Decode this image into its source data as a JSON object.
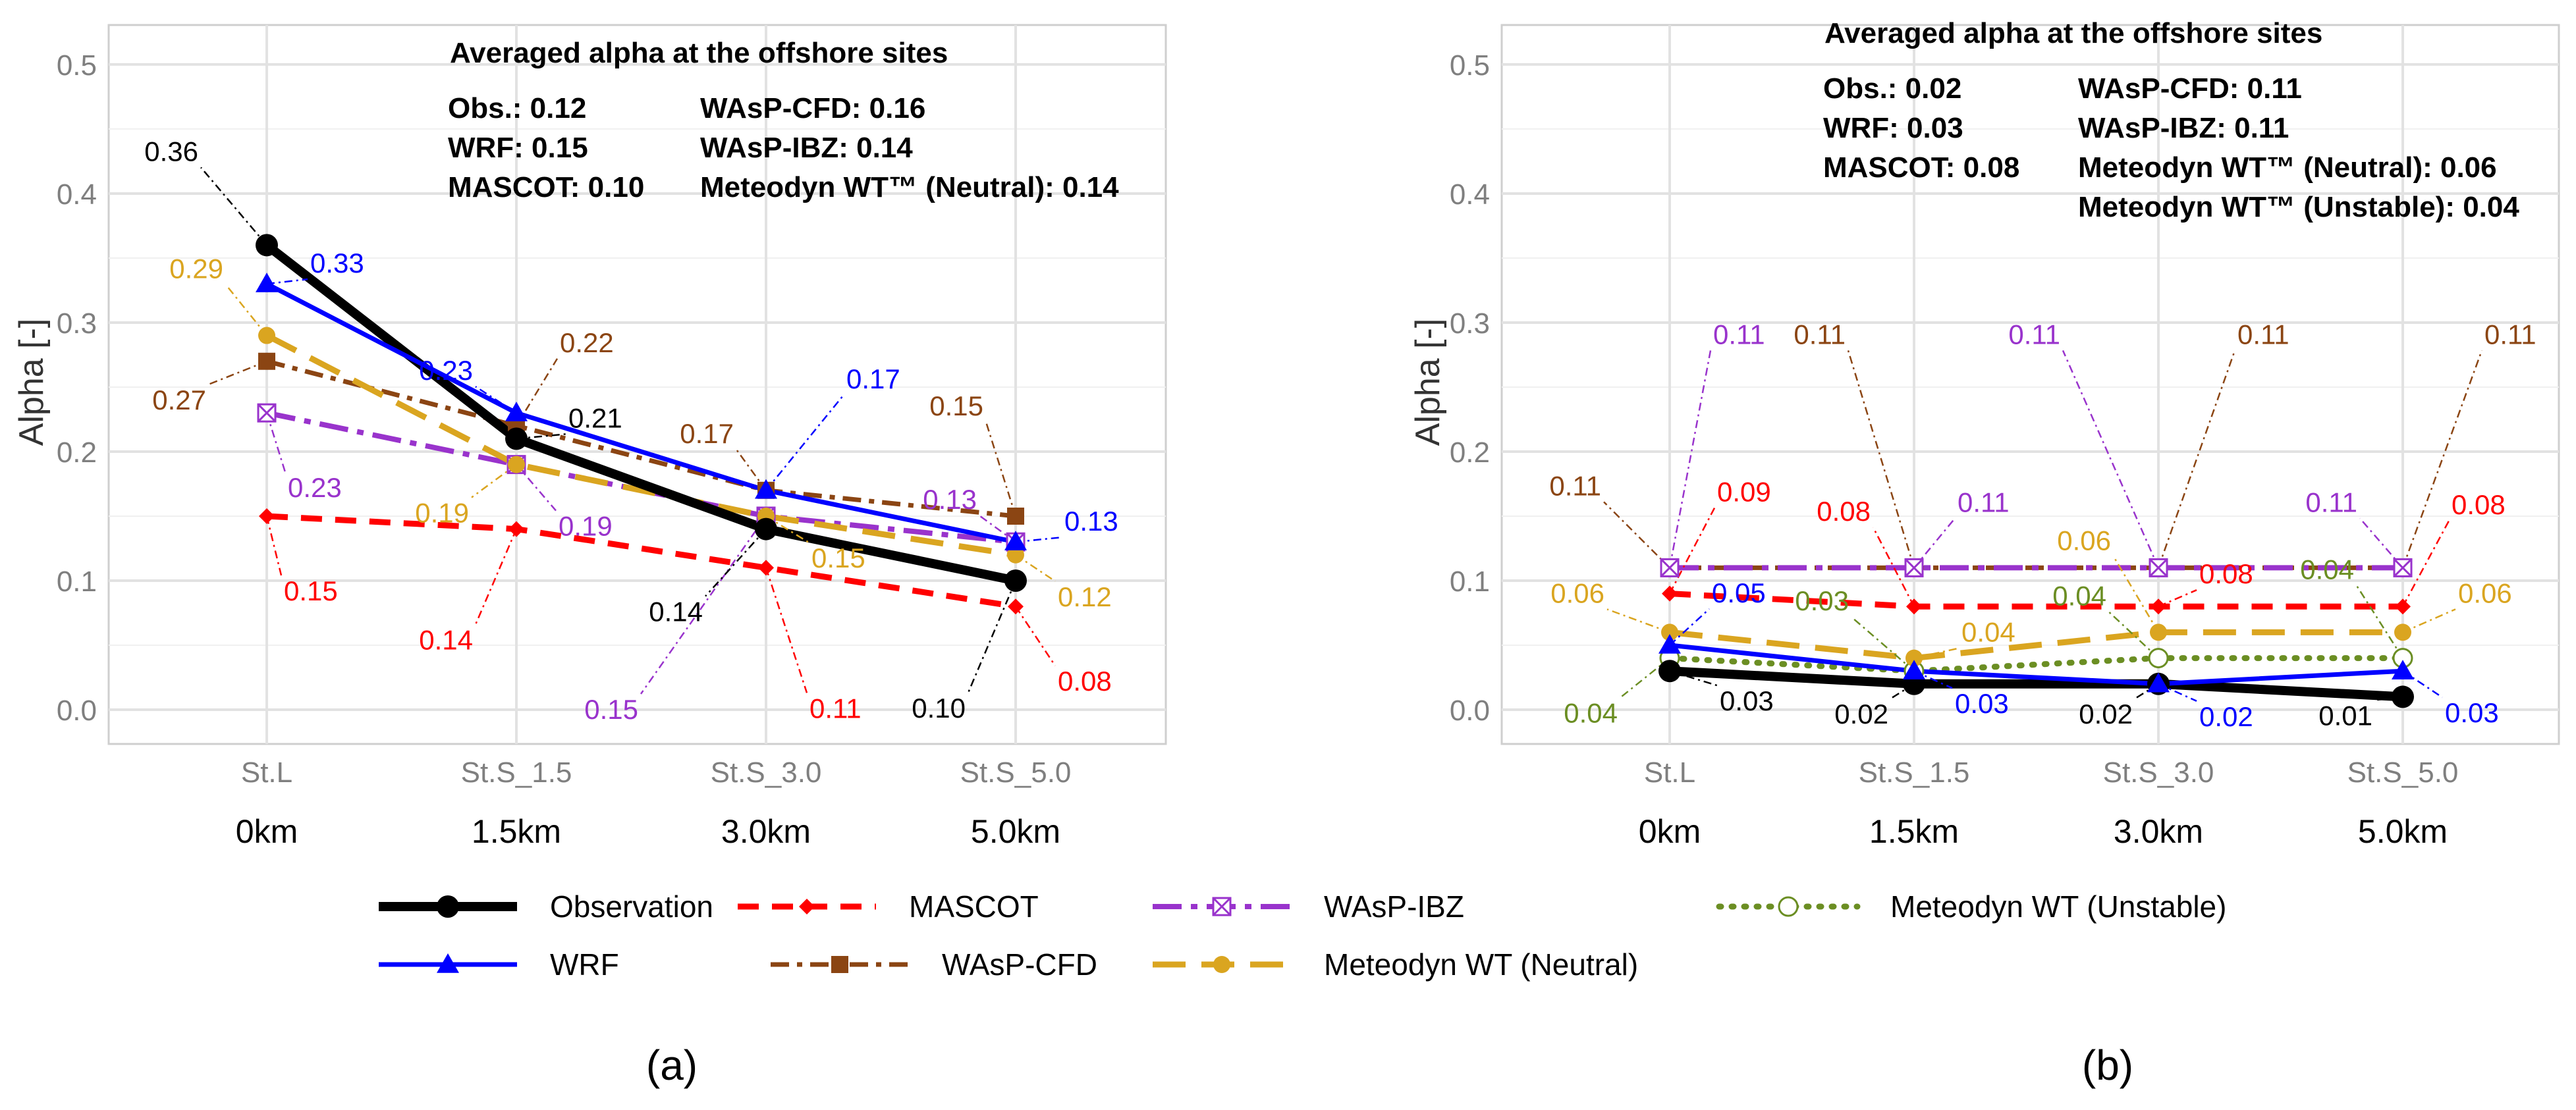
{
  "colors": {
    "observation": "#000000",
    "mascot": "#ff0000",
    "wasp_ibz": "#9933cc",
    "meteodyn_unstable": "#6b8e23",
    "wrf": "#0000ff",
    "wasp_cfd": "#8b4513",
    "meteodyn_neutral": "#daa520",
    "grid": "#e2e2e2",
    "axis_text": "#7f7f7f"
  },
  "legend": {
    "observation": "Observation",
    "mascot": "MASCOT",
    "wasp_ibz": "WAsP-IBZ",
    "meteodyn_unstable": "Meteodyn WT (Unstable)",
    "wrf": "WRF",
    "wasp_cfd": "WAsP-CFD",
    "meteodyn_neutral": "Meteodyn WT (Neutral)"
  },
  "chart_data": [
    {
      "panel": "(a)",
      "type": "line",
      "ylabel": "Alpha [-]",
      "ylim": [
        0.0,
        0.5
      ],
      "yticks": [
        "0.0",
        "0.1",
        "0.2",
        "0.3",
        "0.4",
        "0.5"
      ],
      "categories": [
        "St.L",
        "St.S_1.5",
        "St.S_3.0",
        "St.S_5.0"
      ],
      "distances": [
        "0km",
        "1.5km",
        "3.0km",
        "5.0km"
      ],
      "annotation": {
        "title": "Averaged alpha at the offshore sites",
        "lines": [
          "Obs.: 0.12",
          "WRF: 0.15",
          "MASCOT: 0.10",
          "WAsP-CFD: 0.16",
          "WAsP-IBZ: 0.14",
          "Meteodyn WT™ (Neutral): 0.14"
        ]
      },
      "series": [
        {
          "key": "observation",
          "name": "Observation",
          "values": [
            0.36,
            0.21,
            0.14,
            0.1
          ],
          "labels": [
            "0.36",
            "0.21",
            "0.14",
            "0.10"
          ]
        },
        {
          "key": "wrf",
          "name": "WRF",
          "values": [
            0.33,
            0.23,
            0.17,
            0.13
          ],
          "labels": [
            "0.33",
            "0.23",
            "0.17",
            "0.13"
          ]
        },
        {
          "key": "mascot",
          "name": "MASCOT",
          "values": [
            0.15,
            0.14,
            0.11,
            0.08
          ],
          "labels": [
            "0.15",
            "0.14",
            "0.11",
            "0.08"
          ]
        },
        {
          "key": "wasp_cfd",
          "name": "WAsP-CFD",
          "values": [
            0.27,
            0.22,
            0.17,
            0.15
          ],
          "labels": [
            "0.27",
            "0.22",
            "0.17",
            "0.15"
          ]
        },
        {
          "key": "wasp_ibz",
          "name": "WAsP-IBZ",
          "values": [
            0.23,
            0.19,
            0.15,
            0.13
          ],
          "labels": [
            "0.23",
            "0.19",
            "0.15",
            "0.13"
          ]
        },
        {
          "key": "meteodyn_neutral",
          "name": "Meteodyn WT (Neutral)",
          "values": [
            0.29,
            0.19,
            0.15,
            0.12
          ],
          "labels": [
            "0.29",
            "0.19",
            "0.15",
            "0.12"
          ]
        }
      ]
    },
    {
      "panel": "(b)",
      "type": "line",
      "ylabel": "Alpha [-]",
      "ylim": [
        0.0,
        0.5
      ],
      "yticks": [
        "0.0",
        "0.1",
        "0.2",
        "0.3",
        "0.4",
        "0.5"
      ],
      "categories": [
        "St.L",
        "St.S_1.5",
        "St.S_3.0",
        "St.S_5.0"
      ],
      "distances": [
        "0km",
        "1.5km",
        "3.0km",
        "5.0km"
      ],
      "annotation": {
        "title": "Averaged alpha at the offshore sites",
        "lines": [
          "Obs.: 0.02",
          "WRF: 0.03",
          "MASCOT: 0.08",
          "WAsP-CFD: 0.11",
          "WAsP-IBZ: 0.11",
          "Meteodyn WT™ (Neutral): 0.06",
          "Meteodyn WT™ (Unstable): 0.04"
        ]
      },
      "series": [
        {
          "key": "observation",
          "name": "Observation",
          "values": [
            0.03,
            0.02,
            0.02,
            0.01
          ],
          "labels": [
            "0.03",
            "0.02",
            "0.02",
            "0.01"
          ]
        },
        {
          "key": "wrf",
          "name": "WRF",
          "values": [
            0.05,
            0.03,
            0.02,
            0.03
          ],
          "labels": [
            "0.05",
            "0.03",
            "0.02",
            "0.03"
          ]
        },
        {
          "key": "mascot",
          "name": "MASCOT",
          "values": [
            0.09,
            0.08,
            0.08,
            0.08
          ],
          "labels": [
            "0.09",
            "0.08",
            "0.08",
            "0.08"
          ]
        },
        {
          "key": "wasp_cfd",
          "name": "WAsP-CFD",
          "values": [
            0.11,
            0.11,
            0.11,
            0.11
          ],
          "labels": [
            "0.11",
            "0.11",
            "0.11",
            "0.11"
          ]
        },
        {
          "key": "wasp_ibz",
          "name": "WAsP-IBZ",
          "values": [
            0.11,
            0.11,
            0.11,
            0.11
          ],
          "labels": [
            "0.11",
            "0.11",
            "0.11",
            "0.11"
          ]
        },
        {
          "key": "meteodyn_neutral",
          "name": "Meteodyn WT (Neutral)",
          "values": [
            0.06,
            0.04,
            0.06,
            0.06
          ],
          "labels": [
            "0.06",
            "0.04",
            "0.06",
            "0.06"
          ]
        },
        {
          "key": "meteodyn_unstable",
          "name": "Meteodyn WT (Unstable)",
          "values": [
            0.04,
            0.03,
            0.04,
            0.04
          ],
          "labels": [
            "0.04",
            "0.03",
            "0.04",
            "0.04"
          ]
        }
      ]
    }
  ]
}
